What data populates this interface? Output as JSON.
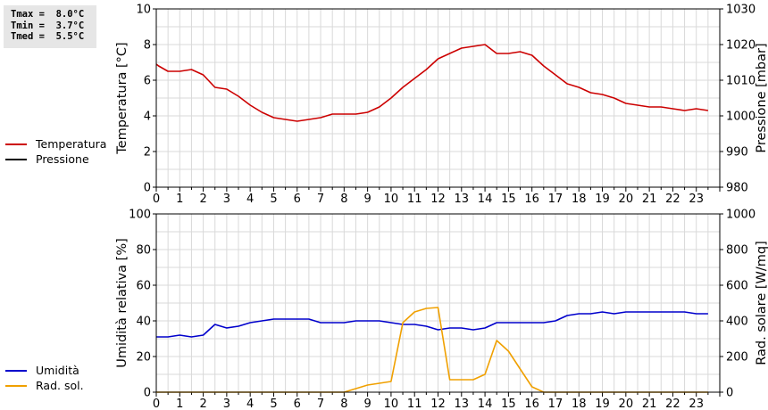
{
  "stats": {
    "tmax": "Tmax =  8.0°C",
    "tmin": "Tmin =  3.7°C",
    "tmed": "Tmed =  5.5°C"
  },
  "legend_top": {
    "items": [
      {
        "label": "Temperatura",
        "color": "#cc0000"
      },
      {
        "label": "Pressione",
        "color": "#000000"
      }
    ]
  },
  "legend_bottom": {
    "items": [
      {
        "label": "Umidità",
        "color": "#0000cc"
      },
      {
        "label": "Rad. sol.",
        "color": "#f0a000"
      }
    ]
  },
  "chart_data": [
    {
      "type": "line",
      "ylabel": "Temperatura [°C]",
      "ylabel_right": "Pressione [mbar]",
      "ylim": [
        0,
        10
      ],
      "ylim_right": [
        980,
        1030
      ],
      "yticks": [
        "0",
        "2",
        "4",
        "6",
        "8",
        "10"
      ],
      "yticks_right": [
        "980",
        "990",
        "1000",
        "1010",
        "1020",
        "1030"
      ],
      "xlim": [
        0,
        24
      ],
      "xticks": [
        "0",
        "1",
        "2",
        "3",
        "4",
        "5",
        "6",
        "7",
        "8",
        "9",
        "10",
        "11",
        "12",
        "13",
        "14",
        "15",
        "16",
        "17",
        "18",
        "19",
        "20",
        "21",
        "22",
        "23"
      ],
      "grid": true,
      "series": [
        {
          "name": "Temperatura",
          "color": "#cc0000",
          "x": [
            0,
            0.1,
            0.5,
            1,
            1.5,
            2,
            2.5,
            3,
            3.5,
            4,
            4.5,
            5,
            5.5,
            6,
            6.5,
            7,
            7.5,
            8,
            8.5,
            9,
            9.5,
            10,
            10.5,
            11,
            11.5,
            12,
            12.5,
            13,
            13.5,
            14,
            14.5,
            15,
            15.5,
            16,
            16.5,
            17,
            17.5,
            18,
            18.5,
            19,
            19.5,
            20,
            20.5,
            21,
            21.5,
            22,
            22.5,
            23,
            23.5
          ],
          "values": [
            6.9,
            6.8,
            6.5,
            6.5,
            6.6,
            6.3,
            5.6,
            5.5,
            5.1,
            4.6,
            4.2,
            3.9,
            3.8,
            3.7,
            3.8,
            3.9,
            4.1,
            4.1,
            4.1,
            4.2,
            4.5,
            5.0,
            5.6,
            6.1,
            6.6,
            7.2,
            7.5,
            7.8,
            7.9,
            8.0,
            7.5,
            7.5,
            7.6,
            7.4,
            6.8,
            6.3,
            5.8,
            5.6,
            5.3,
            5.2,
            5.0,
            4.7,
            4.6,
            4.5,
            4.5,
            4.4,
            4.3,
            4.4,
            4.3
          ]
        },
        {
          "name": "Pressione",
          "color": "#000000",
          "x": [],
          "values": []
        }
      ]
    },
    {
      "type": "line",
      "ylabel": "Umidità relativa [%]",
      "ylabel_right": "Rad. solare [W/mq]",
      "ylim": [
        0,
        100
      ],
      "ylim_right": [
        0,
        1000
      ],
      "yticks": [
        "0",
        "20",
        "40",
        "60",
        "80",
        "100"
      ],
      "yticks_right": [
        "0",
        "200",
        "400",
        "600",
        "800",
        "1000"
      ],
      "xlim": [
        0,
        24
      ],
      "xticks": [
        "0",
        "1",
        "2",
        "3",
        "4",
        "5",
        "6",
        "7",
        "8",
        "9",
        "10",
        "11",
        "12",
        "13",
        "14",
        "15",
        "16",
        "17",
        "18",
        "19",
        "20",
        "21",
        "22",
        "23"
      ],
      "grid": true,
      "series": [
        {
          "name": "Umidità",
          "color": "#0000cc",
          "x": [
            0,
            0.5,
            1,
            1.5,
            2,
            2.5,
            3,
            3.5,
            4,
            4.5,
            5,
            5.5,
            6,
            6.5,
            7,
            7.5,
            8,
            8.5,
            9,
            9.5,
            10,
            10.5,
            11,
            11.5,
            12,
            12.5,
            13,
            13.5,
            14,
            14.5,
            15,
            15.5,
            16,
            16.5,
            17,
            17.5,
            18,
            18.5,
            19,
            19.5,
            20,
            20.5,
            21,
            21.5,
            22,
            22.5,
            23,
            23.5
          ],
          "values": [
            31,
            31,
            32,
            31,
            32,
            38,
            36,
            37,
            39,
            40,
            41,
            41,
            41,
            41,
            39,
            39,
            39,
            40,
            40,
            40,
            39,
            38,
            38,
            37,
            35,
            36,
            36,
            35,
            36,
            39,
            39,
            39,
            39,
            39,
            40,
            43,
            44,
            44,
            45,
            44,
            45,
            45,
            45,
            45,
            45,
            45,
            44,
            44
          ]
        },
        {
          "name": "Rad. sol.",
          "color": "#f0a000",
          "axis": "right",
          "x": [
            0,
            0.5,
            1,
            1.5,
            2,
            2.5,
            3,
            3.5,
            4,
            4.5,
            5,
            5.5,
            6,
            6.5,
            7,
            7.5,
            8,
            8.5,
            9,
            9.5,
            10,
            10.5,
            11,
            11.5,
            12,
            12.5,
            13,
            13.5,
            14,
            14.5,
            15,
            15.5,
            16,
            16.5,
            17,
            17.5,
            18,
            18.5,
            19,
            19.5,
            20,
            20.5,
            21,
            21.5,
            22,
            22.5,
            23,
            23.5
          ],
          "values": [
            0,
            0,
            0,
            0,
            0,
            0,
            0,
            0,
            0,
            0,
            0,
            0,
            0,
            0,
            0,
            0,
            0,
            20,
            40,
            50,
            60,
            390,
            450,
            470,
            475,
            70,
            70,
            70,
            100,
            290,
            230,
            130,
            30,
            0,
            0,
            0,
            0,
            0,
            0,
            0,
            0,
            0,
            0,
            0,
            0,
            0,
            0,
            0
          ]
        }
      ]
    }
  ]
}
